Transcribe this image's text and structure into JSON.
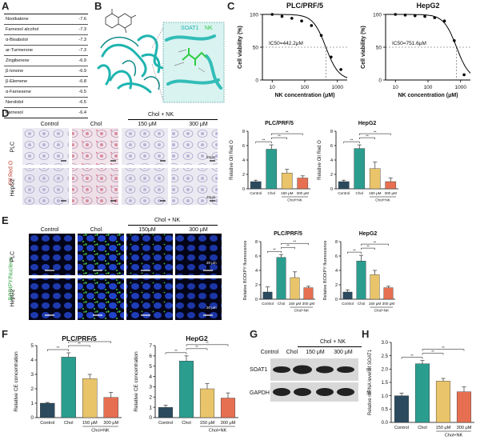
{
  "panels": {
    "A": "A",
    "B": "B",
    "C": "C",
    "D": "D",
    "E": "E",
    "F": "F",
    "G": "G",
    "H": "H"
  },
  "panelA": {
    "rows": [
      {
        "name": "Nootkatone",
        "score": "-7.6"
      },
      {
        "name": "Farnesol alcohol",
        "score": "-7.3"
      },
      {
        "name": "α-Bisabolol",
        "score": "-7.3"
      },
      {
        "name": "ar-Turmerone",
        "score": "-7.3"
      },
      {
        "name": "Zingiberene",
        "score": "-6.9"
      },
      {
        "name": "β-Ionone",
        "score": "-6.9"
      },
      {
        "name": "β-Elemene",
        "score": "-6.8"
      },
      {
        "name": "α-Farnesene",
        "score": "-6.5"
      },
      {
        "name": "Nerolidol",
        "score": "-6.5"
      },
      {
        "name": "Farnesol",
        "score": "-6.4"
      }
    ]
  },
  "panelB": {
    "protein": "SOAT1",
    "ligand": "NK"
  },
  "panelC": {
    "charts": [
      {
        "title": "PLC/PRF/5",
        "ic50": "IC50=442.2μM"
      },
      {
        "title": "HepG2",
        "ic50": "IC50=751.6μM"
      }
    ],
    "xlabel": "NK concentration (μM)",
    "ylabel": "Cell viability (%)"
  },
  "panelD": {
    "headers": {
      "control": "Control",
      "chol": "Chol",
      "group": "Chol + NK",
      "c150": "150 μM",
      "c300": "300 μM"
    },
    "rows": {
      "plc": "PLC",
      "hepg2": "HepG2"
    },
    "stain": "Oil Red O",
    "scale": "20μm"
  },
  "panelE": {
    "headers": {
      "control": "Control",
      "chol": "Chol",
      "group": "Chol + NK",
      "c150": "150μM",
      "c300": "300 μM"
    },
    "rows": {
      "plc": "PLC",
      "hepg2": "HepG2"
    },
    "stain": "BODIPY/Nucleus",
    "scale": "20 μm"
  },
  "panelG": {
    "headers": {
      "control": "Control",
      "chol": "Chol",
      "group": "Chol + NK",
      "c150": "150 μM",
      "c300": "300 μM"
    },
    "bands": {
      "soat1": "SOAT1",
      "gapdh": "GAPDH"
    },
    "kda": {
      "soat1": "55",
      "gapdh": "36"
    }
  },
  "colors": {
    "control": "#2b4a5e",
    "chol": "#2a9d8f",
    "nk150": "#e9c46a",
    "nk300": "#e76f51"
  },
  "chart_data": [
    {
      "id": "C1",
      "type": "scatter",
      "title": "PLC/PRF/5",
      "xlabel": "NK concentration (μM)",
      "ylabel": "Cell viability (%)",
      "x": [
        10,
        20,
        40,
        80,
        160,
        320,
        640,
        1280
      ],
      "y": [
        100,
        97,
        94,
        90,
        83,
        68,
        35,
        16
      ],
      "xlim": [
        5,
        2000
      ],
      "ylim": [
        0,
        100
      ],
      "xscale": "log",
      "xticks": [
        10,
        100,
        1000
      ],
      "yticks": [
        0,
        50,
        100
      ],
      "ic50": 442.2
    },
    {
      "id": "C2",
      "type": "scatter",
      "title": "HepG2",
      "xlabel": "NK concentration (μM)",
      "ylabel": "Cell viability (%)",
      "x": [
        10,
        20,
        40,
        80,
        160,
        320,
        640,
        1280
      ],
      "y": [
        100,
        99,
        98,
        97,
        95,
        90,
        60,
        8
      ],
      "xlim": [
        5,
        2000
      ],
      "ylim": [
        0,
        100
      ],
      "xscale": "log",
      "xticks": [
        10,
        100,
        1000
      ],
      "yticks": [
        0,
        50,
        100
      ],
      "ic50": 751.6
    },
    {
      "id": "D1",
      "type": "bar",
      "title": "PLC/PRF/5",
      "ylabel": "Relative Oil Red O",
      "categories": [
        "Control",
        "Chol",
        "150 μM",
        "300 μM"
      ],
      "values": [
        1.0,
        5.5,
        2.2,
        1.5
      ],
      "errors": [
        0.2,
        0.6,
        0.5,
        0.3
      ],
      "ylim": [
        0,
        8
      ],
      "yticks": [
        0,
        2,
        4,
        6,
        8
      ],
      "group_label": "Chol+NK",
      "sig": [
        "**",
        "**",
        "**"
      ]
    },
    {
      "id": "D2",
      "type": "bar",
      "title": "HepG2",
      "ylabel": "Relative Oil Red O",
      "categories": [
        "Control",
        "Chol",
        "150 μM",
        "300 μM"
      ],
      "values": [
        1.0,
        5.6,
        2.8,
        1.0
      ],
      "errors": [
        0.2,
        0.5,
        0.9,
        0.5
      ],
      "ylim": [
        0,
        8
      ],
      "yticks": [
        0,
        2,
        4,
        6,
        8
      ],
      "group_label": "Chol+NK",
      "sig": [
        "**",
        "**",
        "**"
      ]
    },
    {
      "id": "E1",
      "type": "bar",
      "title": "PLC/PRF/5",
      "ylabel": "Relative BODIPY fluorescence",
      "categories": [
        "Control",
        "Chol",
        "150 μM",
        "300 μM"
      ],
      "values": [
        1.0,
        5.8,
        3.0,
        1.6
      ],
      "errors": [
        0.7,
        0.4,
        0.8,
        0.2
      ],
      "ylim": [
        0,
        8
      ],
      "yticks": [
        0,
        2,
        4,
        6,
        8
      ],
      "group_label": "Chol+NK",
      "sig": [
        "**",
        "**",
        "**"
      ]
    },
    {
      "id": "E2",
      "type": "bar",
      "title": "HepG2",
      "ylabel": "Relative BODIPY fluorescence",
      "categories": [
        "Control",
        "Chol",
        "150 μM",
        "300 μM"
      ],
      "values": [
        1.0,
        5.3,
        3.4,
        1.6
      ],
      "errors": [
        0.3,
        0.8,
        0.6,
        0.2
      ],
      "ylim": [
        0,
        8
      ],
      "yticks": [
        0,
        2,
        4,
        6,
        8
      ],
      "group_label": "Chol+NK",
      "sig": [
        "**",
        "**",
        "**"
      ]
    },
    {
      "id": "F1",
      "type": "bar",
      "title": "PLC/PRF/5",
      "ylabel": "Relative CE concentration",
      "categories": [
        "Control",
        "Chol",
        "150 μM",
        "300 μM"
      ],
      "values": [
        1.0,
        4.2,
        2.7,
        1.4
      ],
      "errors": [
        0.05,
        0.3,
        0.3,
        0.35
      ],
      "ylim": [
        0,
        5
      ],
      "yticks": [
        0,
        1,
        2,
        3,
        4,
        5
      ],
      "group_label": "Chol+NK",
      "sig": [
        "**",
        "**",
        "**"
      ]
    },
    {
      "id": "F2",
      "type": "bar",
      "title": "HepG2",
      "ylabel": "Relative CE concentration",
      "categories": [
        "Control",
        "Chol",
        "150 μM",
        "300 μM"
      ],
      "values": [
        1.0,
        5.5,
        2.8,
        1.9
      ],
      "errors": [
        0.2,
        0.5,
        0.5,
        0.5
      ],
      "ylim": [
        0,
        7
      ],
      "yticks": [
        0,
        1,
        2,
        3,
        4,
        5,
        6,
        7
      ],
      "group_label": "Chol+NK",
      "sig": [
        "**",
        "**",
        "**"
      ]
    },
    {
      "id": "H1",
      "type": "bar",
      "title": "",
      "ylabel": "Relative mRNA level of SOAT1",
      "categories": [
        "Control",
        "Chol",
        "150 μM",
        "300 μM"
      ],
      "values": [
        1.0,
        2.2,
        1.55,
        1.15
      ],
      "errors": [
        0.1,
        0.12,
        0.1,
        0.18
      ],
      "ylim": [
        0,
        3
      ],
      "yticks": [
        0.0,
        0.5,
        1.0,
        1.5,
        2.0,
        2.5,
        3.0
      ],
      "group_label": "Chol+NK",
      "sig": [
        "**",
        "**",
        "**"
      ]
    }
  ]
}
